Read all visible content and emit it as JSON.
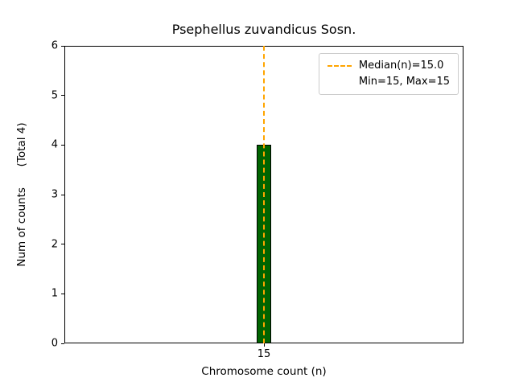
{
  "chart_data": {
    "type": "bar",
    "title": "Psephellus zuvandicus Sosn.",
    "xlabel": "Chromosome count (n)",
    "ylabel": "Num of counts      (Total 4)",
    "categories": [
      "15"
    ],
    "values": [
      4
    ],
    "total_counts": 4,
    "ylim": [
      0,
      6
    ],
    "yticks": [
      0,
      1,
      2,
      3,
      4,
      5,
      6
    ],
    "grid": false,
    "bar_color": "#006400",
    "bar_edge_color": "#000000",
    "median_line": {
      "x": "15",
      "value": 15.0,
      "color": "#FFA500",
      "style": "dashed"
    },
    "legend": {
      "position": "upper right",
      "entries": [
        {
          "label": "Median(n)=15.0",
          "marker": "dashed-line",
          "color": "#FFA500"
        },
        {
          "label": "Min=15, Max=15",
          "marker": "none"
        }
      ]
    }
  }
}
